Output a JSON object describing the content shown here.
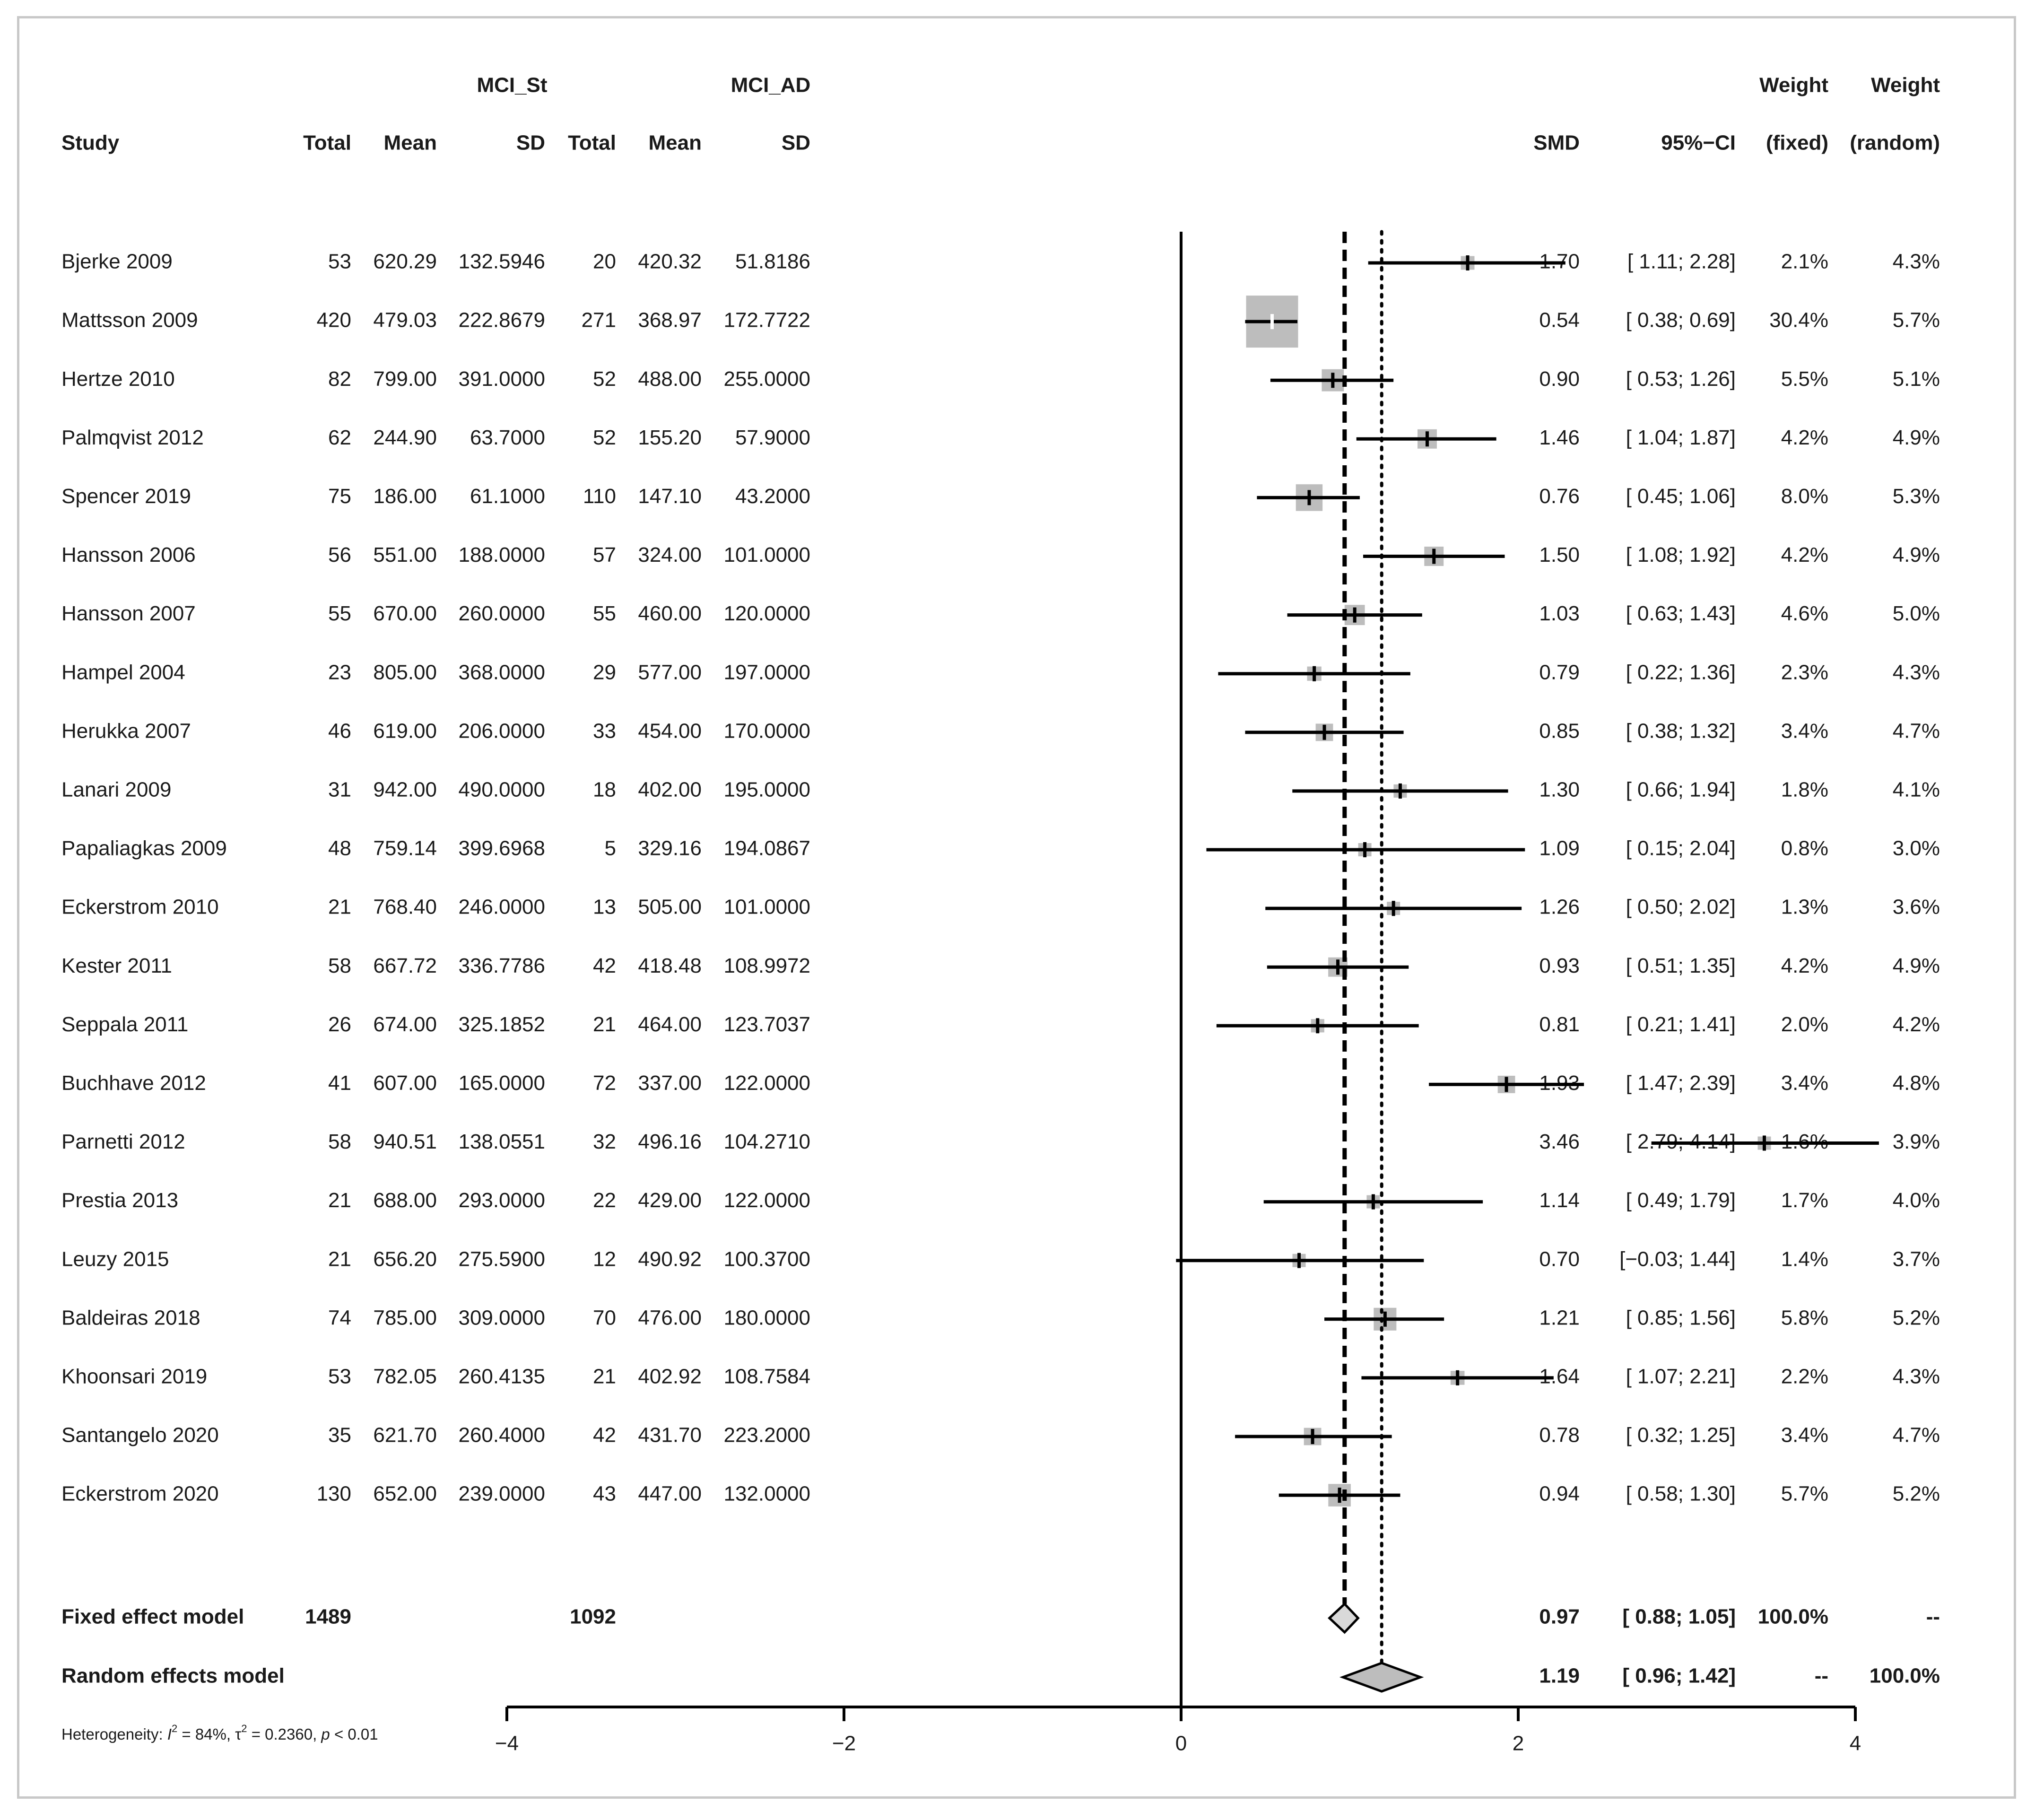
{
  "chart_data": {
    "type": "forest",
    "measure": "SMD",
    "x_range": [
      -4,
      4
    ],
    "x_ticks": [
      "−4",
      "−2",
      "0",
      "2",
      "4"
    ],
    "group_labels": {
      "experimental": "MCI_St",
      "control": "MCI_AD"
    },
    "headers": {
      "weight_top": "Weight",
      "study": "Study",
      "total": "Total",
      "mean": "Mean",
      "sd": "SD",
      "smd": "SMD",
      "ci": "95%−CI",
      "w_fixed": "(fixed)",
      "w_random": "(random)"
    },
    "studies": [
      {
        "study": "Bjerke 2009",
        "n1": "53",
        "m1": "620.29",
        "s1": "132.5946",
        "n2": "20",
        "m2": "420.32",
        "s2": "51.8186",
        "smd": 1.7,
        "lo": 1.11,
        "hi": 2.28,
        "smd_t": "1.70",
        "ci_t": "[ 1.11; 2.28]",
        "wf": "2.1%",
        "wr": "4.3%",
        "wf_v": 2.1
      },
      {
        "study": "Mattsson 2009",
        "n1": "420",
        "m1": "479.03",
        "s1": "222.8679",
        "n2": "271",
        "m2": "368.97",
        "s2": "172.7722",
        "smd": 0.54,
        "lo": 0.38,
        "hi": 0.69,
        "smd_t": "0.54",
        "ci_t": "[ 0.38; 0.69]",
        "wf": "30.4%",
        "wr": "5.7%",
        "wf_v": 30.4
      },
      {
        "study": "Hertze 2010",
        "n1": "82",
        "m1": "799.00",
        "s1": "391.0000",
        "n2": "52",
        "m2": "488.00",
        "s2": "255.0000",
        "smd": 0.9,
        "lo": 0.53,
        "hi": 1.26,
        "smd_t": "0.90",
        "ci_t": "[ 0.53; 1.26]",
        "wf": "5.5%",
        "wr": "5.1%",
        "wf_v": 5.5
      },
      {
        "study": "Palmqvist 2012",
        "n1": "62",
        "m1": "244.90",
        "s1": "63.7000",
        "n2": "52",
        "m2": "155.20",
        "s2": "57.9000",
        "smd": 1.46,
        "lo": 1.04,
        "hi": 1.87,
        "smd_t": "1.46",
        "ci_t": "[ 1.04; 1.87]",
        "wf": "4.2%",
        "wr": "4.9%",
        "wf_v": 4.2
      },
      {
        "study": "Spencer 2019",
        "n1": "75",
        "m1": "186.00",
        "s1": "61.1000",
        "n2": "110",
        "m2": "147.10",
        "s2": "43.2000",
        "smd": 0.76,
        "lo": 0.45,
        "hi": 1.06,
        "smd_t": "0.76",
        "ci_t": "[ 0.45; 1.06]",
        "wf": "8.0%",
        "wr": "5.3%",
        "wf_v": 8.0
      },
      {
        "study": "Hansson 2006",
        "n1": "56",
        "m1": "551.00",
        "s1": "188.0000",
        "n2": "57",
        "m2": "324.00",
        "s2": "101.0000",
        "smd": 1.5,
        "lo": 1.08,
        "hi": 1.92,
        "smd_t": "1.50",
        "ci_t": "[ 1.08; 1.92]",
        "wf": "4.2%",
        "wr": "4.9%",
        "wf_v": 4.2
      },
      {
        "study": "Hansson 2007",
        "n1": "55",
        "m1": "670.00",
        "s1": "260.0000",
        "n2": "55",
        "m2": "460.00",
        "s2": "120.0000",
        "smd": 1.03,
        "lo": 0.63,
        "hi": 1.43,
        "smd_t": "1.03",
        "ci_t": "[ 0.63; 1.43]",
        "wf": "4.6%",
        "wr": "5.0%",
        "wf_v": 4.6
      },
      {
        "study": "Hampel 2004",
        "n1": "23",
        "m1": "805.00",
        "s1": "368.0000",
        "n2": "29",
        "m2": "577.00",
        "s2": "197.0000",
        "smd": 0.79,
        "lo": 0.22,
        "hi": 1.36,
        "smd_t": "0.79",
        "ci_t": "[ 0.22; 1.36]",
        "wf": "2.3%",
        "wr": "4.3%",
        "wf_v": 2.3
      },
      {
        "study": "Herukka 2007",
        "n1": "46",
        "m1": "619.00",
        "s1": "206.0000",
        "n2": "33",
        "m2": "454.00",
        "s2": "170.0000",
        "smd": 0.85,
        "lo": 0.38,
        "hi": 1.32,
        "smd_t": "0.85",
        "ci_t": "[ 0.38; 1.32]",
        "wf": "3.4%",
        "wr": "4.7%",
        "wf_v": 3.4
      },
      {
        "study": "Lanari 2009",
        "n1": "31",
        "m1": "942.00",
        "s1": "490.0000",
        "n2": "18",
        "m2": "402.00",
        "s2": "195.0000",
        "smd": 1.3,
        "lo": 0.66,
        "hi": 1.94,
        "smd_t": "1.30",
        "ci_t": "[ 0.66; 1.94]",
        "wf": "1.8%",
        "wr": "4.1%",
        "wf_v": 1.8
      },
      {
        "study": "Papaliagkas 2009",
        "n1": "48",
        "m1": "759.14",
        "s1": "399.6968",
        "n2": "5",
        "m2": "329.16",
        "s2": "194.0867",
        "smd": 1.09,
        "lo": 0.15,
        "hi": 2.04,
        "smd_t": "1.09",
        "ci_t": "[ 0.15; 2.04]",
        "wf": "0.8%",
        "wr": "3.0%",
        "wf_v": 0.8
      },
      {
        "study": "Eckerstrom 2010",
        "n1": "21",
        "m1": "768.40",
        "s1": "246.0000",
        "n2": "13",
        "m2": "505.00",
        "s2": "101.0000",
        "smd": 1.26,
        "lo": 0.5,
        "hi": 2.02,
        "smd_t": "1.26",
        "ci_t": "[ 0.50; 2.02]",
        "wf": "1.3%",
        "wr": "3.6%",
        "wf_v": 1.3
      },
      {
        "study": "Kester 2011",
        "n1": "58",
        "m1": "667.72",
        "s1": "336.7786",
        "n2": "42",
        "m2": "418.48",
        "s2": "108.9972",
        "smd": 0.93,
        "lo": 0.51,
        "hi": 1.35,
        "smd_t": "0.93",
        "ci_t": "[ 0.51; 1.35]",
        "wf": "4.2%",
        "wr": "4.9%",
        "wf_v": 4.2
      },
      {
        "study": "Seppala 2011",
        "n1": "26",
        "m1": "674.00",
        "s1": "325.1852",
        "n2": "21",
        "m2": "464.00",
        "s2": "123.7037",
        "smd": 0.81,
        "lo": 0.21,
        "hi": 1.41,
        "smd_t": "0.81",
        "ci_t": "[ 0.21; 1.41]",
        "wf": "2.0%",
        "wr": "4.2%",
        "wf_v": 2.0
      },
      {
        "study": "Buchhave 2012",
        "n1": "41",
        "m1": "607.00",
        "s1": "165.0000",
        "n2": "72",
        "m2": "337.00",
        "s2": "122.0000",
        "smd": 1.93,
        "lo": 1.47,
        "hi": 2.39,
        "smd_t": "1.93",
        "ci_t": "[ 1.47; 2.39]",
        "wf": "3.4%",
        "wr": "4.8%",
        "wf_v": 3.4
      },
      {
        "study": "Parnetti 2012",
        "n1": "58",
        "m1": "940.51",
        "s1": "138.0551",
        "n2": "32",
        "m2": "496.16",
        "s2": "104.2710",
        "smd": 3.46,
        "lo": 2.79,
        "hi": 4.14,
        "smd_t": "3.46",
        "ci_t": "[ 2.79; 4.14]",
        "wf": "1.6%",
        "wr": "3.9%",
        "wf_v": 1.6
      },
      {
        "study": "Prestia 2013",
        "n1": "21",
        "m1": "688.00",
        "s1": "293.0000",
        "n2": "22",
        "m2": "429.00",
        "s2": "122.0000",
        "smd": 1.14,
        "lo": 0.49,
        "hi": 1.79,
        "smd_t": "1.14",
        "ci_t": "[ 0.49; 1.79]",
        "wf": "1.7%",
        "wr": "4.0%",
        "wf_v": 1.7
      },
      {
        "study": "Leuzy 2015",
        "n1": "21",
        "m1": "656.20",
        "s1": "275.5900",
        "n2": "12",
        "m2": "490.92",
        "s2": "100.3700",
        "smd": 0.7,
        "lo": -0.03,
        "hi": 1.44,
        "smd_t": "0.70",
        "ci_t": "[−0.03; 1.44]",
        "wf": "1.4%",
        "wr": "3.7%",
        "wf_v": 1.4
      },
      {
        "study": "Baldeiras 2018",
        "n1": "74",
        "m1": "785.00",
        "s1": "309.0000",
        "n2": "70",
        "m2": "476.00",
        "s2": "180.0000",
        "smd": 1.21,
        "lo": 0.85,
        "hi": 1.56,
        "smd_t": "1.21",
        "ci_t": "[ 0.85; 1.56]",
        "wf": "5.8%",
        "wr": "5.2%",
        "wf_v": 5.8
      },
      {
        "study": "Khoonsari 2019",
        "n1": "53",
        "m1": "782.05",
        "s1": "260.4135",
        "n2": "21",
        "m2": "402.92",
        "s2": "108.7584",
        "smd": 1.64,
        "lo": 1.07,
        "hi": 2.21,
        "smd_t": "1.64",
        "ci_t": "[ 1.07; 2.21]",
        "wf": "2.2%",
        "wr": "4.3%",
        "wf_v": 2.2
      },
      {
        "study": "Santangelo 2020",
        "n1": "35",
        "m1": "621.70",
        "s1": "260.4000",
        "n2": "42",
        "m2": "431.70",
        "s2": "223.2000",
        "smd": 0.78,
        "lo": 0.32,
        "hi": 1.25,
        "smd_t": "0.78",
        "ci_t": "[ 0.32; 1.25]",
        "wf": "3.4%",
        "wr": "4.7%",
        "wf_v": 3.4
      },
      {
        "study": "Eckerstrom 2020",
        "n1": "130",
        "m1": "652.00",
        "s1": "239.0000",
        "n2": "43",
        "m2": "447.00",
        "s2": "132.0000",
        "smd": 0.94,
        "lo": 0.58,
        "hi": 1.3,
        "smd_t": "0.94",
        "ci_t": "[ 0.58; 1.30]",
        "wf": "5.7%",
        "wr": "5.2%",
        "wf_v": 5.7
      }
    ],
    "fixed": {
      "label": "Fixed effect model",
      "n1": "1489",
      "n2": "1092",
      "smd": 0.97,
      "lo": 0.88,
      "hi": 1.05,
      "smd_t": "0.97",
      "ci_t": "[ 0.88; 1.05]",
      "wf": "100.0%",
      "wr": "--"
    },
    "random": {
      "label": "Random effects model",
      "smd": 1.19,
      "lo": 0.96,
      "hi": 1.42,
      "smd_t": "1.19",
      "ci_t": "[ 0.96; 1.42]",
      "wf": "--",
      "wr": "100.0%"
    },
    "heterogeneity": {
      "prefix": "Heterogeneity: ",
      "i2_label": "I",
      "i2_exp": "2",
      "i2_value": " = 84%, ",
      "tau_label": "τ",
      "tau_exp": "2",
      "tau_value": " = 0.2360, ",
      "p_label": "p",
      "p_value": " < 0.01"
    }
  }
}
